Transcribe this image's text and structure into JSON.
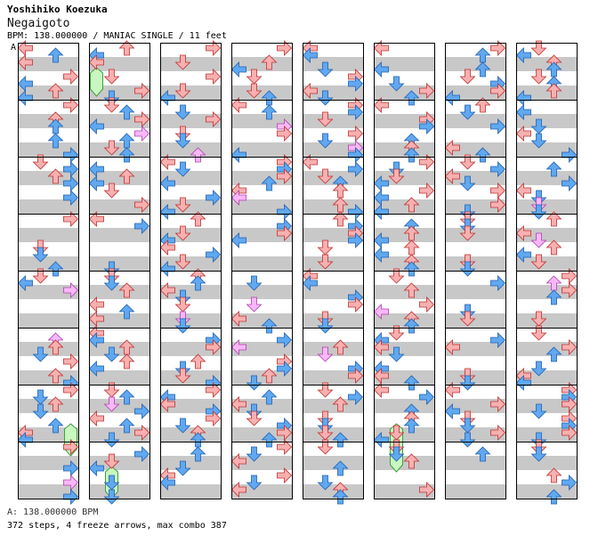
{
  "song": {
    "artist": "Yoshihiko Koezuka",
    "title": "Negaigoto",
    "info_line": "BPM: 138.000000 / MANIAC SINGLE / 11 feet"
  },
  "section_label": "A",
  "footer": {
    "bpm_line": "A: 138.000000 BPM",
    "stats_line": "372 steps, 4 freeze arrows, max combo 387"
  },
  "colors": {
    "red_arrow": "#f8b0b0",
    "red_outline": "#c03030",
    "blue_arrow": "#60a8f0",
    "blue_outline": "#2060b0",
    "pink_arrow": "#f8b8f8",
    "pink_outline": "#b040b0",
    "freeze": "#c8f8c0",
    "freeze_outline": "#40a040",
    "stripe": "#c8c8c8",
    "border": "#000000"
  },
  "chart": {
    "columns": 8,
    "measures_per_column": 8,
    "lanes": [
      "left",
      "down",
      "up",
      "right"
    ],
    "total_steps": 372,
    "freeze_count": 4,
    "max_combo": 387,
    "seed": 20260138
  }
}
